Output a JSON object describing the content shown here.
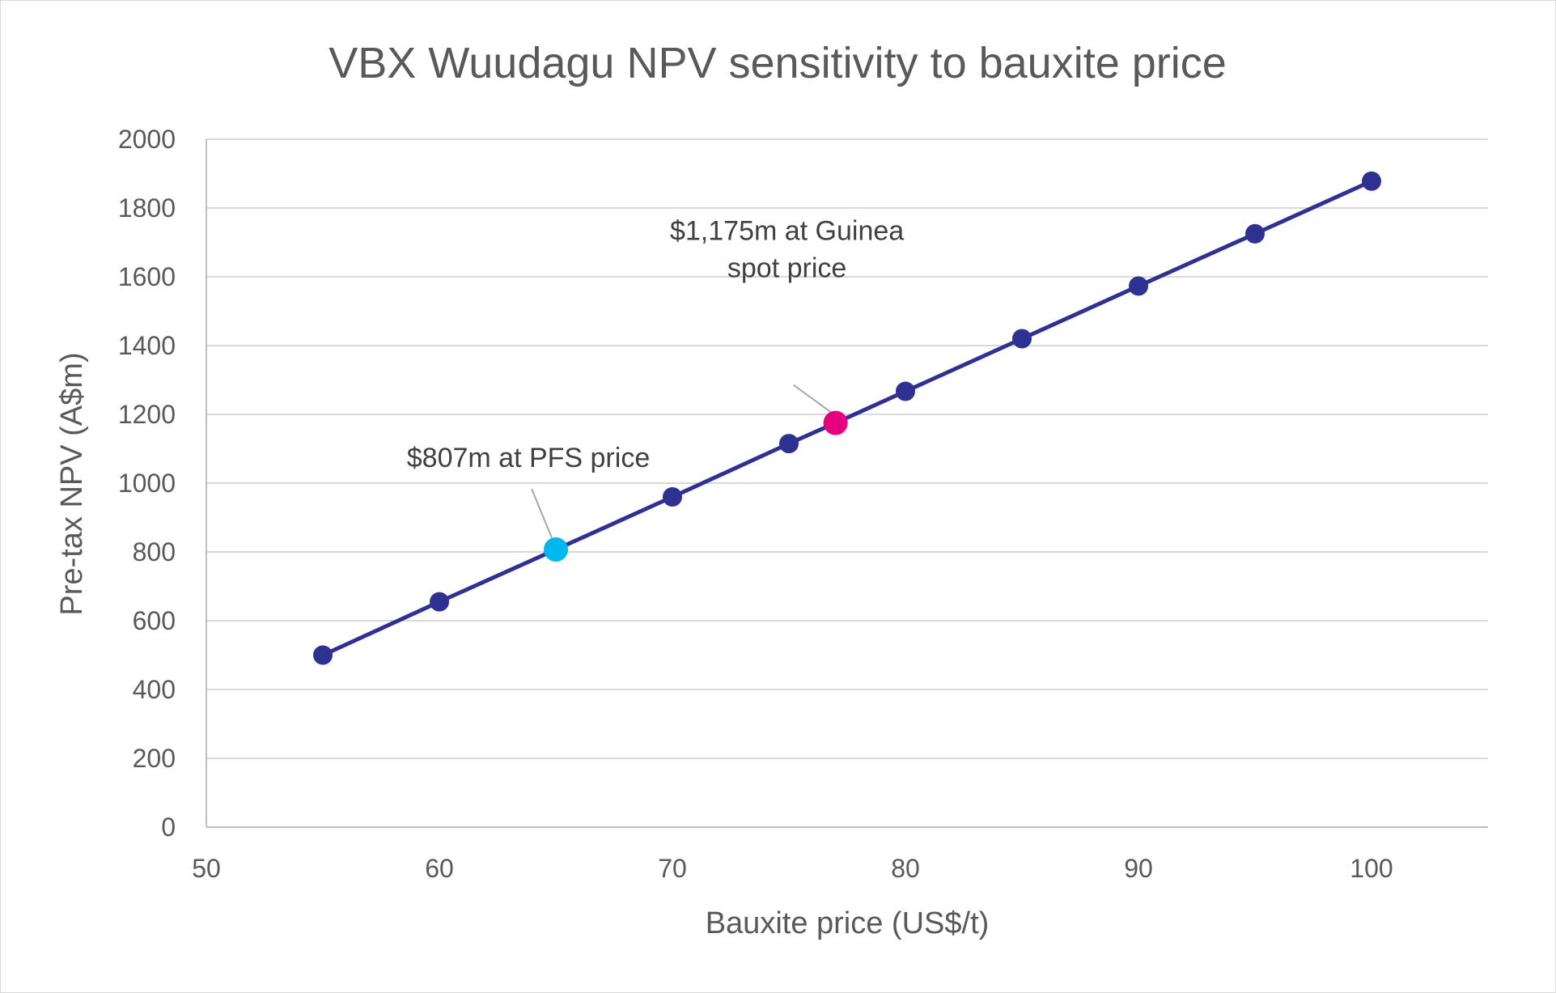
{
  "chart_data": {
    "type": "scatter",
    "title": "VBX Wuudagu NPV sensitivity to bauxite price",
    "xlabel": "Bauxite price (US$/t)",
    "ylabel": "Pre-tax NPV (A$m)",
    "xlim": [
      50,
      105
    ],
    "ylim": [
      0,
      2000
    ],
    "x_ticks": [
      50,
      60,
      70,
      80,
      90,
      100
    ],
    "y_ticks": [
      0,
      200,
      400,
      600,
      800,
      1000,
      1200,
      1400,
      1600,
      1800,
      2000
    ],
    "grid": "horizontal",
    "legend": "none",
    "series": [
      {
        "x": [
          55,
          60,
          65,
          70,
          75,
          77,
          80,
          85,
          90,
          95,
          100
        ],
        "y": [
          500,
          655,
          807,
          960,
          1115,
          1175,
          1267,
          1420,
          1573,
          1725,
          1878
        ],
        "color": "#2e3192",
        "highlight_colors": {
          "65": "#00b7ee",
          "77": "#e6007e"
        }
      }
    ],
    "annotations": [
      {
        "lines": [
          "$807m at PFS price"
        ],
        "x": 65,
        "y": 807
      },
      {
        "lines": [
          "$1,175m at Guinea",
          "spot price"
        ],
        "x": 77,
        "y": 1175
      }
    ]
  }
}
